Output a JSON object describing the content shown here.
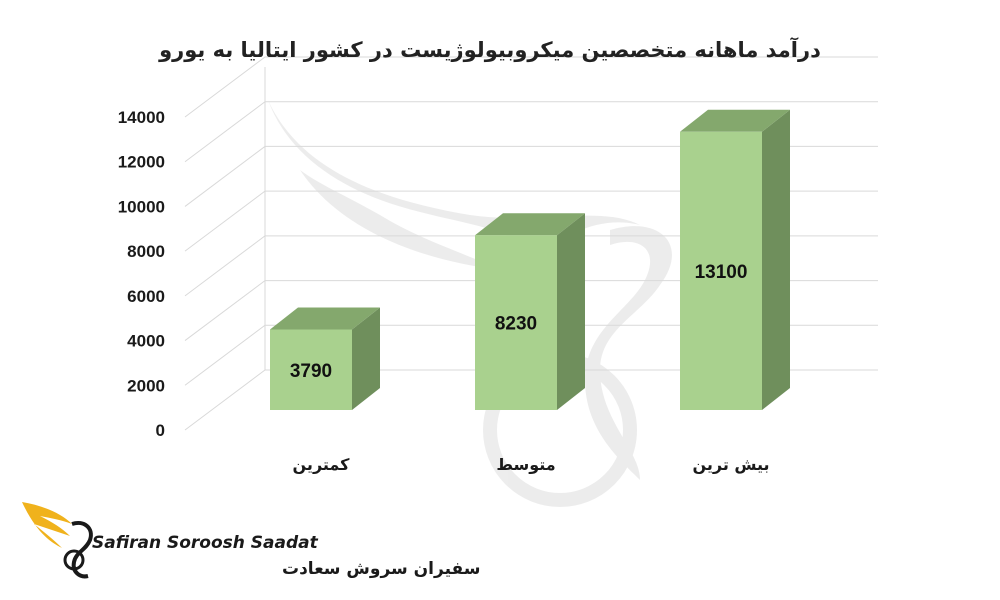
{
  "chart_data": {
    "type": "bar",
    "title": "درآمد ماهانه متخصصین میکروبیولوژیست در کشور ایتالیا به یورو",
    "categories": [
      "کمترین",
      "متوسط",
      "بیش ترین"
    ],
    "values": [
      3790,
      8230,
      13100
    ],
    "data_labels": [
      "3790",
      "8230",
      "13100"
    ],
    "ylim": [
      0,
      14000
    ],
    "yticks": [
      "0",
      "2000",
      "4000",
      "6000",
      "8000",
      "10000",
      "12000",
      "14000"
    ],
    "xlabel": "",
    "ylabel": "",
    "grid": true,
    "style": "3d-column",
    "colors": {
      "bar_front": "#a9d18e",
      "bar_side": "#6f8f5c",
      "bar_top": "#84a86d",
      "grid": "#d9d9d9"
    }
  },
  "watermark": {
    "icon": "phoenix-wing-logo"
  },
  "brand": {
    "icon": "phoenix-logo-icon",
    "name_en": "Safiran Soroosh Saadat",
    "name_fa": "سفیران سروش سعادت"
  }
}
